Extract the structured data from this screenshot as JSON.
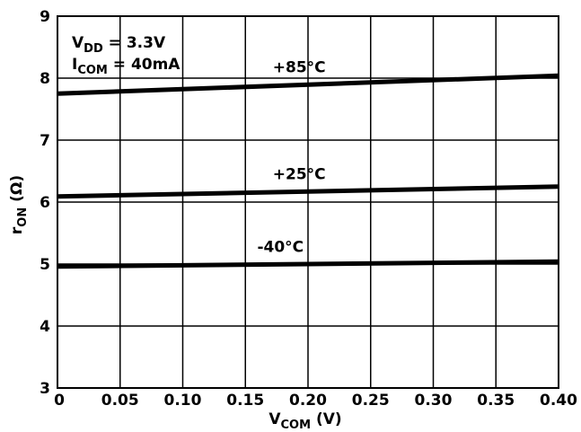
{
  "chart_data": {
    "type": "line",
    "xlabel": {
      "main": "V",
      "sub": "COM",
      "unit": " (V)"
    },
    "ylabel": {
      "main": "r",
      "sub": "ON",
      "unit": " (Ω)"
    },
    "xlim": [
      0,
      0.4
    ],
    "ylim": [
      3,
      9
    ],
    "x_ticks": [
      "0",
      "0.05",
      "0.10",
      "0.15",
      "0.20",
      "0.25",
      "0.30",
      "0.35",
      "0.40"
    ],
    "y_ticks": [
      "3",
      "4",
      "5",
      "6",
      "7",
      "8",
      "9"
    ],
    "grid": true,
    "annotations": [
      {
        "main": "V",
        "sub": "DD",
        "rest": " = 3.3V"
      },
      {
        "main": "I",
        "sub": "COM",
        "rest": " = 40mA"
      }
    ],
    "series": [
      {
        "name": "+85°C",
        "x": [
          0,
          0.4
        ],
        "y": [
          7.75,
          8.04
        ]
      },
      {
        "name": "+25°C",
        "x": [
          0,
          0.4
        ],
        "y": [
          6.09,
          6.25
        ]
      },
      {
        "name": "-40°C",
        "x": [
          0,
          0.4
        ],
        "y": [
          4.96,
          5.04
        ]
      }
    ]
  }
}
